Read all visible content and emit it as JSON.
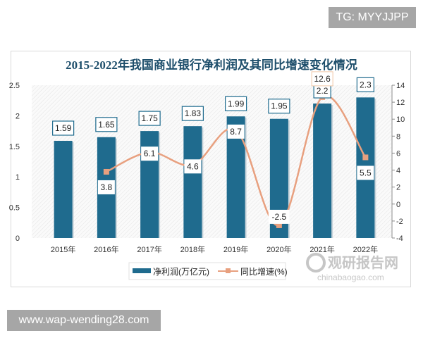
{
  "watermarks": {
    "top_right": "TG: MYYJJPP",
    "bottom_left": "www.wap-wending28.com",
    "logo_cn": "观研报告网",
    "logo_en": "chinabaogao.com"
  },
  "chart_data": {
    "type": "bar+line",
    "title": "2015-2022年我国商业银行净利润及其同比增速变化情况",
    "categories": [
      "2015年",
      "2016年",
      "2017年",
      "2018年",
      "2019年",
      "2020年",
      "2021年",
      "2022年"
    ],
    "series": [
      {
        "name": "净利润(万亿元)",
        "type": "bar",
        "axis": "left",
        "color": "#1f6b8e",
        "values": [
          1.59,
          1.65,
          1.75,
          1.83,
          1.99,
          1.95,
          2.2,
          2.3
        ],
        "labels": [
          "1.59",
          "1.65",
          "1.75",
          "1.83",
          "1.99",
          "1.95",
          "2.2",
          "2.3"
        ]
      },
      {
        "name": "同比增速(%)",
        "type": "line",
        "axis": "right",
        "color": "#e8a07f",
        "values": [
          null,
          3.8,
          6.1,
          4.6,
          8.7,
          -2.5,
          12.6,
          5.5
        ],
        "labels": [
          "",
          "3.8",
          "6.1",
          "4.6",
          "8.7",
          "-2.5",
          "12.6",
          "5.5"
        ]
      }
    ],
    "y_left": {
      "range": [
        0,
        2.5
      ],
      "ticks": [
        "0",
        "0.5",
        "1",
        "1.5",
        "2",
        "2.5"
      ]
    },
    "y_right": {
      "range": [
        -4,
        14
      ],
      "ticks": [
        "-4",
        "-2",
        "0",
        "2",
        "4",
        "6",
        "8",
        "10",
        "12",
        "14"
      ]
    },
    "legend": "bottom",
    "background": "hatched"
  }
}
